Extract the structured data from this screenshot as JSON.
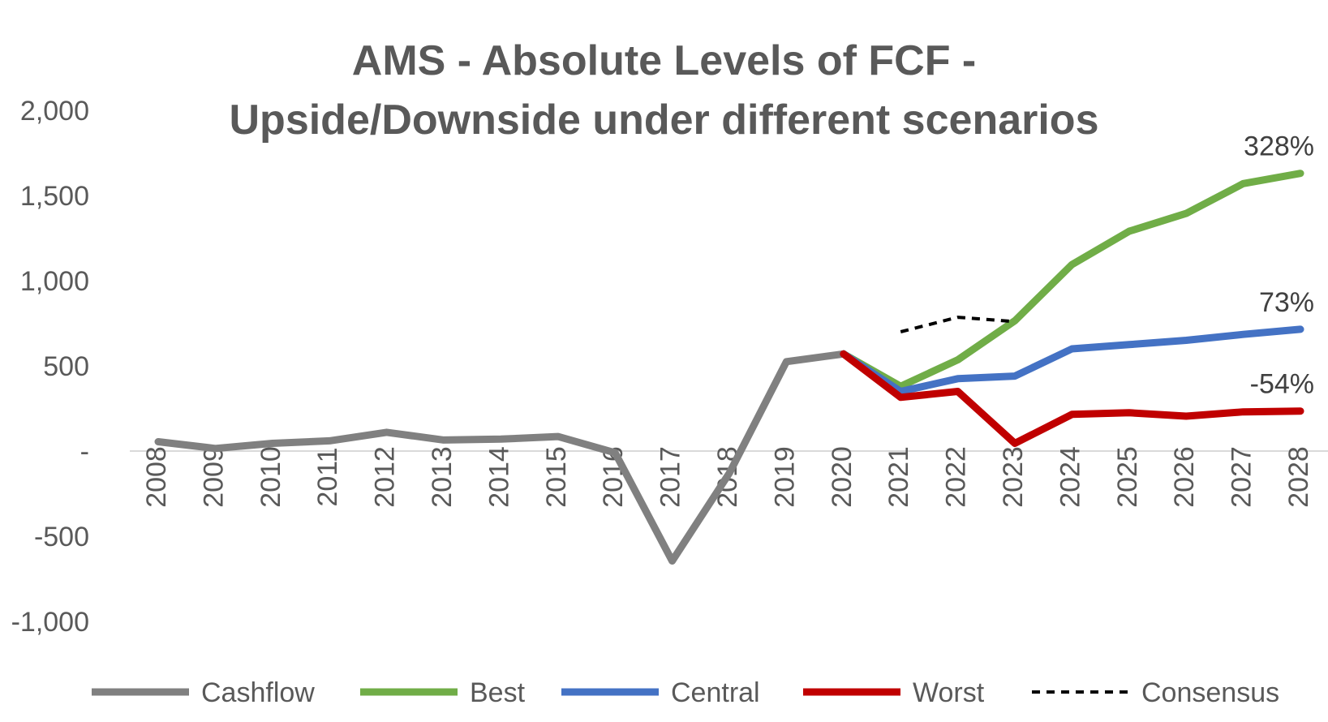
{
  "chart_data": {
    "type": "line",
    "title_lines": [
      "AMS - Absolute Levels of FCF -",
      "Upside/Downside under different scenarios"
    ],
    "xlabel": "",
    "ylabel": "",
    "ylim": [
      -1000,
      2000
    ],
    "y_ticks": [
      {
        "value": 2000,
        "label": "2,000"
      },
      {
        "value": 1500,
        "label": "1,500"
      },
      {
        "value": 1000,
        "label": "1,000"
      },
      {
        "value": 500,
        "label": "500"
      },
      {
        "value": 0,
        "label": "-"
      },
      {
        "value": -500,
        "label": "-500"
      },
      {
        "value": -1000,
        "label": "-1,000"
      }
    ],
    "categories": [
      "2008",
      "2009",
      "2010",
      "2011",
      "2012",
      "2013",
      "2014",
      "2015",
      "2016",
      "2017",
      "2018",
      "2019",
      "2020",
      "2021",
      "2022",
      "2023",
      "2024",
      "2025",
      "2026",
      "2027",
      "2028"
    ],
    "grid": false,
    "legend_position": "bottom",
    "series": [
      {
        "name": "Cashflow",
        "color": "#808080",
        "dash": false,
        "values": [
          55,
          15,
          45,
          60,
          110,
          65,
          70,
          85,
          -10,
          -645,
          -130,
          525,
          570,
          null,
          null,
          null,
          null,
          null,
          null,
          null,
          null
        ]
      },
      {
        "name": "Best",
        "color": "#70AD47",
        "dash": false,
        "values": [
          null,
          null,
          null,
          null,
          null,
          null,
          null,
          null,
          null,
          null,
          null,
          null,
          570,
          380,
          535,
          765,
          1095,
          1290,
          1395,
          1570,
          1630
        ]
      },
      {
        "name": "Central",
        "color": "#4472C4",
        "dash": false,
        "values": [
          null,
          null,
          null,
          null,
          null,
          null,
          null,
          null,
          null,
          null,
          null,
          null,
          570,
          350,
          425,
          440,
          600,
          625,
          650,
          685,
          715
        ]
      },
      {
        "name": "Worst",
        "color": "#C00000",
        "dash": false,
        "values": [
          null,
          null,
          null,
          null,
          null,
          null,
          null,
          null,
          null,
          null,
          null,
          null,
          570,
          315,
          350,
          45,
          215,
          225,
          205,
          230,
          235
        ]
      },
      {
        "name": "Consensus",
        "color": "#000000",
        "dash": true,
        "values": [
          null,
          null,
          null,
          null,
          null,
          null,
          null,
          null,
          null,
          null,
          null,
          null,
          null,
          700,
          785,
          760,
          null,
          null,
          null,
          null,
          null
        ]
      }
    ],
    "annotations": [
      {
        "series": "Best",
        "text": "328%"
      },
      {
        "series": "Central",
        "text": "73%"
      },
      {
        "series": "Worst",
        "text": "-54%"
      }
    ]
  }
}
